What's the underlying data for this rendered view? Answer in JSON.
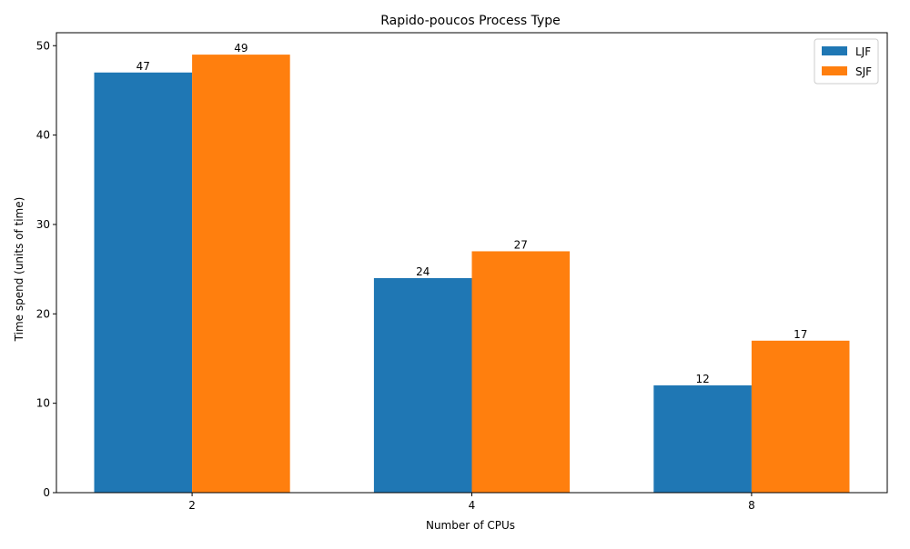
{
  "chart_data": {
    "type": "bar",
    "title": "Rapido-poucos Process Type",
    "xlabel": "Number of CPUs",
    "ylabel": "Time spend (units of time)",
    "categories": [
      "2",
      "4",
      "8"
    ],
    "series": [
      {
        "name": "LJF",
        "values": [
          47,
          24,
          12
        ],
        "color": "#1f77b4"
      },
      {
        "name": "SJF",
        "values": [
          49,
          27,
          17
        ],
        "color": "#ff7f0e"
      }
    ],
    "ylim": [
      0,
      51.45
    ],
    "yticks": [
      0,
      10,
      20,
      30,
      40,
      50
    ],
    "grid": false,
    "legend_position": "top-right",
    "data_labels": true
  }
}
